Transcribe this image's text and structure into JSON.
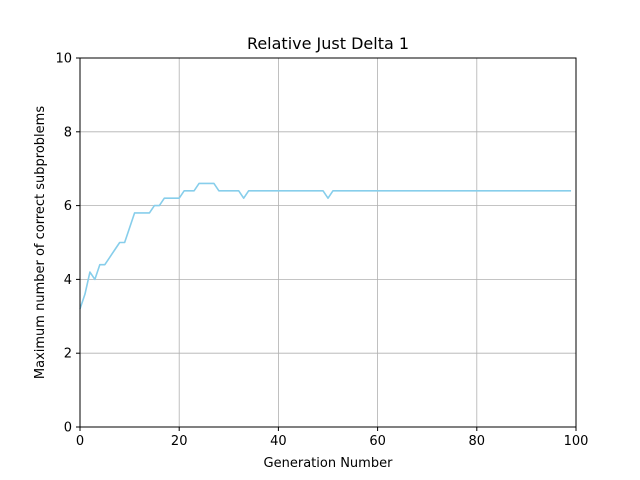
{
  "chart_data": {
    "type": "line",
    "title": "Relative Just Delta 1",
    "xlabel": "Generation Number",
    "ylabel": "Maximum number of correct subproblems",
    "xlim": [
      0,
      100
    ],
    "ylim": [
      0,
      10
    ],
    "xticks": [
      0,
      20,
      40,
      60,
      80,
      100
    ],
    "yticks": [
      0,
      2,
      4,
      6,
      8,
      10
    ],
    "grid": true,
    "line_color": "#87ceeb",
    "series": [
      {
        "x": [
          0,
          1,
          2,
          3,
          4,
          5,
          6,
          7,
          8,
          9,
          10,
          11,
          12,
          13,
          14,
          15,
          16,
          17,
          18,
          19,
          20,
          21,
          22,
          23,
          24,
          25,
          26,
          27,
          28,
          29,
          30,
          31,
          32,
          33,
          34,
          35,
          36,
          37,
          38,
          39,
          40,
          41,
          42,
          43,
          44,
          45,
          46,
          47,
          48,
          49,
          50,
          51,
          52,
          53,
          54,
          55,
          56,
          57,
          58,
          59,
          60,
          61,
          62,
          63,
          64,
          65,
          66,
          67,
          68,
          69,
          70,
          71,
          72,
          73,
          74,
          75,
          76,
          77,
          78,
          79,
          80,
          81,
          82,
          83,
          84,
          85,
          86,
          87,
          88,
          89,
          90,
          91,
          92,
          93,
          94,
          95,
          96,
          97,
          98,
          99
        ],
        "values": [
          3.2,
          3.6,
          4.2,
          4.0,
          4.4,
          4.4,
          4.6,
          4.8,
          5.0,
          5.0,
          5.4,
          5.8,
          5.8,
          5.8,
          5.8,
          6.0,
          6.0,
          6.2,
          6.2,
          6.2,
          6.2,
          6.4,
          6.4,
          6.4,
          6.6,
          6.6,
          6.6,
          6.6,
          6.4,
          6.4,
          6.4,
          6.4,
          6.4,
          6.2,
          6.4,
          6.4,
          6.4,
          6.4,
          6.4,
          6.4,
          6.4,
          6.4,
          6.4,
          6.4,
          6.4,
          6.4,
          6.4,
          6.4,
          6.4,
          6.4,
          6.2,
          6.4,
          6.4,
          6.4,
          6.4,
          6.4,
          6.4,
          6.4,
          6.4,
          6.4,
          6.4,
          6.4,
          6.4,
          6.4,
          6.4,
          6.4,
          6.4,
          6.4,
          6.4,
          6.4,
          6.4,
          6.4,
          6.4,
          6.4,
          6.4,
          6.4,
          6.4,
          6.4,
          6.4,
          6.4,
          6.4,
          6.4,
          6.4,
          6.4,
          6.4,
          6.4,
          6.4,
          6.4,
          6.4,
          6.4,
          6.4,
          6.4,
          6.4,
          6.4,
          6.4,
          6.4,
          6.4,
          6.4,
          6.4,
          6.4
        ]
      }
    ]
  }
}
